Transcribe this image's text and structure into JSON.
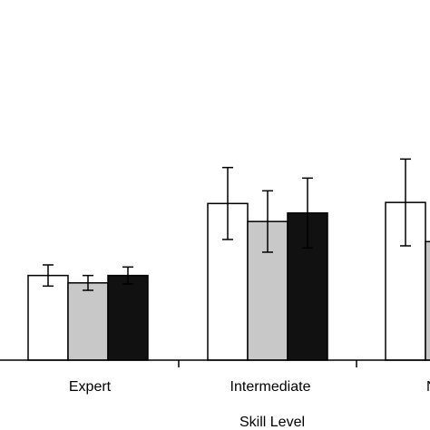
{
  "chart_data": {
    "type": "bar",
    "xlabel": "Skill Level",
    "ylabel": "",
    "categories": [
      "Expert",
      "Intermediate",
      "Novice"
    ],
    "category_labels_visible": [
      "Expert",
      "Intermediate",
      "N"
    ],
    "ylim": [
      0,
      30
    ],
    "grid": false,
    "series": [
      {
        "fill": "#ffffff",
        "values": [
          8.0,
          14.8,
          14.9
        ],
        "errors": [
          1.0,
          3.4,
          4.1
        ]
      },
      {
        "fill": "#c8c8c8",
        "values": [
          7.3,
          13.1,
          11.2
        ],
        "errors": [
          0.7,
          2.9,
          0
        ]
      },
      {
        "fill": "#111111",
        "values": [
          8.0,
          13.9,
          null
        ],
        "errors": [
          0.8,
          3.3,
          null
        ]
      }
    ]
  }
}
